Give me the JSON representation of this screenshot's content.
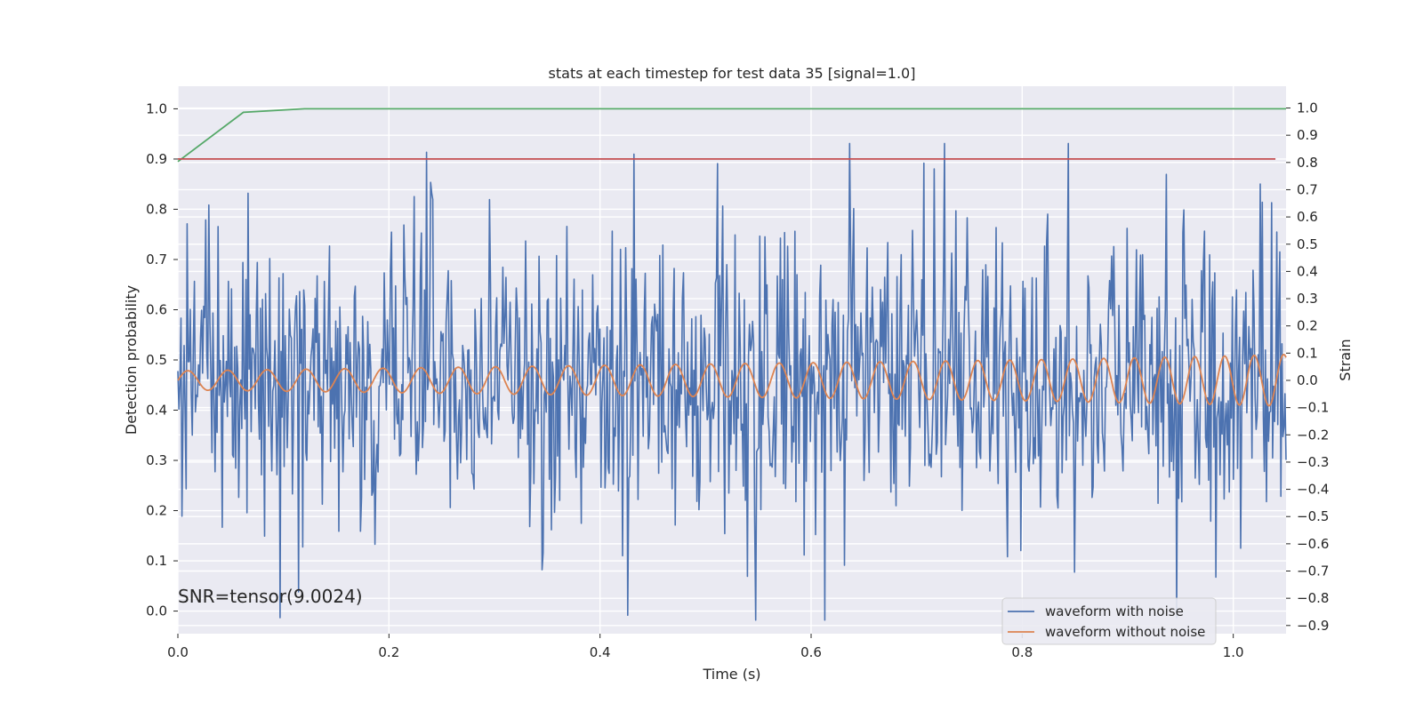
{
  "chart_data": {
    "type": "line",
    "title": "stats at each timestep for test data 35 [signal=1.0]",
    "xlabel": "Time (s)",
    "ylabel_left": "Detection probability",
    "ylabel_right": "Strain",
    "xlim": [
      0.0,
      1.05
    ],
    "ylim_left": [
      -0.045,
      1.045
    ],
    "ylim_right": [
      -0.93,
      1.08
    ],
    "x_ticks": [
      "0.0",
      "0.2",
      "0.4",
      "0.6",
      "0.8",
      "1.0"
    ],
    "x_tick_values": [
      0.0,
      0.2,
      0.4,
      0.6,
      0.8,
      1.0
    ],
    "y_left_ticks": [
      "0.0",
      "0.1",
      "0.2",
      "0.3",
      "0.4",
      "0.5",
      "0.6",
      "0.7",
      "0.8",
      "0.9",
      "1.0"
    ],
    "y_left_tick_values": [
      0.0,
      0.1,
      0.2,
      0.3,
      0.4,
      0.5,
      0.6,
      0.7,
      0.8,
      0.9,
      1.0
    ],
    "y_right_ticks": [
      "−0.9",
      "−0.8",
      "−0.7",
      "−0.6",
      "−0.5",
      "−0.4",
      "−0.3",
      "−0.2",
      "−0.1",
      "0.0",
      "0.1",
      "0.2",
      "0.3",
      "0.4",
      "0.5",
      "0.6",
      "0.7",
      "0.8",
      "0.9",
      "1.0"
    ],
    "y_right_tick_values": [
      -0.9,
      -0.8,
      -0.7,
      -0.6,
      -0.5,
      -0.4,
      -0.3,
      -0.2,
      -0.1,
      0.0,
      0.1,
      0.2,
      0.3,
      0.4,
      0.5,
      0.6,
      0.7,
      0.8,
      0.9,
      1.0
    ],
    "grid": true,
    "legend_position": "lower-right",
    "annotation": "SNR=tensor(9.0024)",
    "series": [
      {
        "name": "waveform with noise",
        "axis": "right",
        "color": "#4c72b0",
        "x_start": 0.0,
        "x_end": 1.05,
        "n_points": 1075,
        "description_values": "noise-dominated strain around 0.0, range approx -0.88 to 0.87"
      },
      {
        "name": "waveform without noise",
        "axis": "right",
        "color": "#dd8452",
        "x": [
          0.0,
          0.2,
          0.4,
          0.6,
          0.8,
          1.0,
          1.05
        ],
        "amplitude": [
          0.035,
          0.045,
          0.055,
          0.065,
          0.075,
          0.09,
          0.095
        ],
        "period_s": [
          0.038,
          0.036,
          0.034,
          0.032,
          0.03,
          0.028,
          0.028
        ]
      },
      {
        "axis": "left",
        "color": "#55a868",
        "x": [
          0.0,
          0.062,
          0.12,
          1.05
        ],
        "y": [
          0.895,
          0.993,
          1.0,
          1.0
        ]
      },
      {
        "axis": "left",
        "color": "#c44e52",
        "x": [
          0.0,
          1.04
        ],
        "y": [
          0.9,
          0.9
        ]
      }
    ]
  }
}
